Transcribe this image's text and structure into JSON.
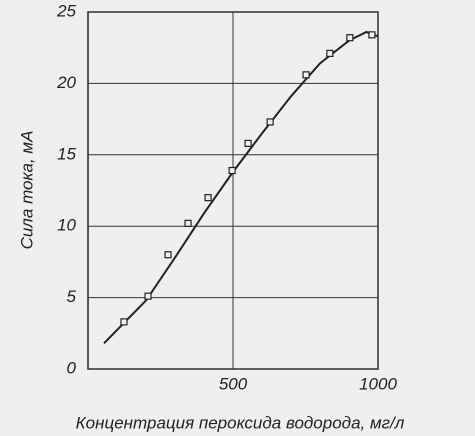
{
  "chart_data": {
    "type": "scatter",
    "x_label": "Концентрация пероксида водорода, мг/л",
    "y_label": "Сила тока, мА",
    "points": {
      "x": [
        124,
        207,
        276,
        345,
        414,
        497,
        552,
        628,
        752,
        834,
        903,
        979
      ],
      "y": [
        3.3,
        5.1,
        8.0,
        10.2,
        12.0,
        13.9,
        15.8,
        17.3,
        20.6,
        22.1,
        23.2,
        23.4
      ]
    },
    "curve": {
      "x": [
        55,
        200,
        300,
        400,
        500,
        600,
        700,
        800,
        900,
        960,
        1000
      ],
      "y": [
        1.8,
        4.8,
        7.8,
        10.9,
        13.8,
        16.5,
        19.1,
        21.4,
        23.0,
        23.6,
        23.3
      ]
    },
    "color": "#222222",
    "xlim": [
      0,
      1000
    ],
    "xticks": [
      500,
      1000
    ],
    "ylim": [
      0,
      25
    ],
    "yticks": [
      0,
      5,
      10,
      15,
      20,
      25
    ],
    "grid": true
  }
}
